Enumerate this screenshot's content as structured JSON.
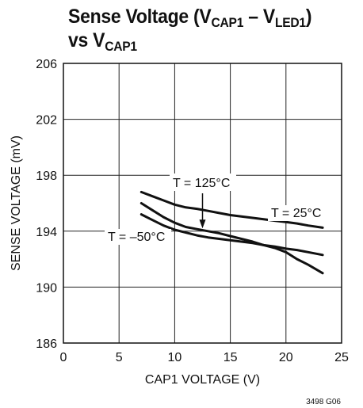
{
  "title": {
    "l1_pre": "Sense Voltage (V",
    "l1_sub1": "CAP1",
    "l1_mid": " – V",
    "l1_sub2": "LED1",
    "l1_post": ")",
    "l2_pre": "vs V",
    "l2_sub": "CAP1"
  },
  "figure_note": "3498 G06",
  "chart_data": {
    "type": "line",
    "xlabel": "CAP1 VOLTAGE (V)",
    "ylabel": "SENSE VOLTAGE (mV)",
    "xlim": [
      0,
      25
    ],
    "ylim": [
      186,
      206
    ],
    "xticks": [
      0,
      5,
      10,
      15,
      20,
      25
    ],
    "yticks": [
      186,
      190,
      194,
      198,
      202,
      206
    ],
    "grid": true,
    "series": [
      {
        "name": "T = 25°C",
        "x": [
          7,
          8,
          9,
          10,
          11,
          12,
          13,
          14,
          15,
          16,
          17,
          18,
          19,
          20,
          21,
          22,
          23.3
        ],
        "y": [
          196.8,
          196.5,
          196.2,
          195.9,
          195.7,
          195.6,
          195.45,
          195.3,
          195.15,
          195.05,
          194.95,
          194.85,
          194.75,
          194.65,
          194.55,
          194.4,
          194.25
        ]
      },
      {
        "name": "T = 125°C",
        "x": [
          7,
          8,
          9,
          10,
          11,
          12,
          13,
          14,
          15,
          16,
          17,
          18,
          19,
          20,
          21,
          22,
          23.3
        ],
        "y": [
          196.0,
          195.5,
          195.0,
          194.6,
          194.3,
          194.15,
          194.0,
          193.85,
          193.65,
          193.45,
          193.25,
          193.0,
          192.8,
          192.5,
          192.0,
          191.6,
          191.0
        ]
      },
      {
        "name": "T = –50°C",
        "x": [
          7,
          8,
          9,
          10,
          11,
          12,
          13,
          14,
          15,
          16,
          17,
          18,
          19,
          20,
          21,
          22,
          23.3
        ],
        "y": [
          195.2,
          194.8,
          194.4,
          194.1,
          193.9,
          193.7,
          193.55,
          193.45,
          193.35,
          193.25,
          193.15,
          193.0,
          192.9,
          192.75,
          192.65,
          192.5,
          192.3
        ]
      }
    ],
    "annotations": [
      {
        "text": "T = 125°C",
        "arrow_to": [
          12.5,
          194.2
        ]
      },
      {
        "text": "T = 25°C"
      },
      {
        "text": "T = –50°C"
      }
    ]
  }
}
